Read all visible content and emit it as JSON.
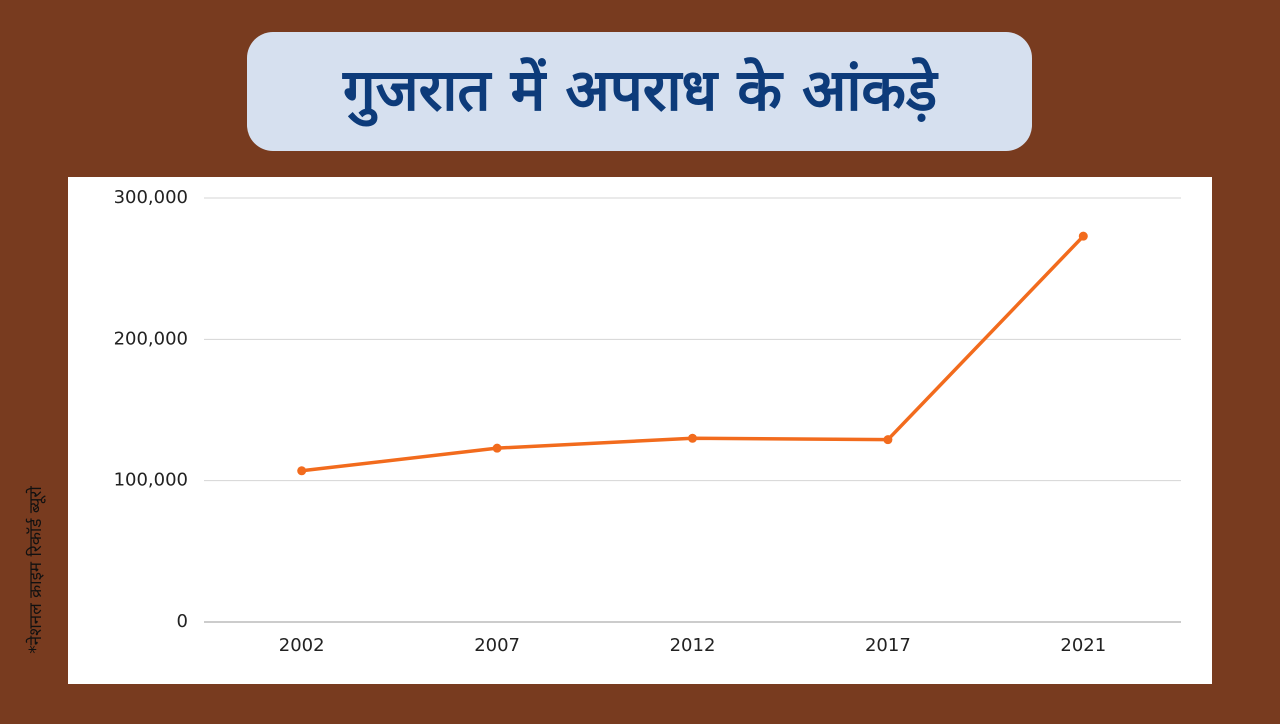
{
  "chart_data": {
    "type": "line",
    "title": "गुजरात में अपराध के आंकड़े",
    "source": "*नेशनल क्राइम रिकॉर्ड ब्यूरो",
    "categories": [
      "2002",
      "2007",
      "2012",
      "2017",
      "2021"
    ],
    "values": [
      107000,
      123000,
      130000,
      129000,
      273000
    ],
    "color": "#f26b1d",
    "ylim": [
      0,
      300000
    ],
    "yticks": [
      0,
      {
        "value": 100000,
        "label": "100,000"
      },
      {
        "value": 200000,
        "label": "200,000"
      },
      {
        "value": 300000,
        "label": "300,000"
      }
    ],
    "grid": true
  }
}
